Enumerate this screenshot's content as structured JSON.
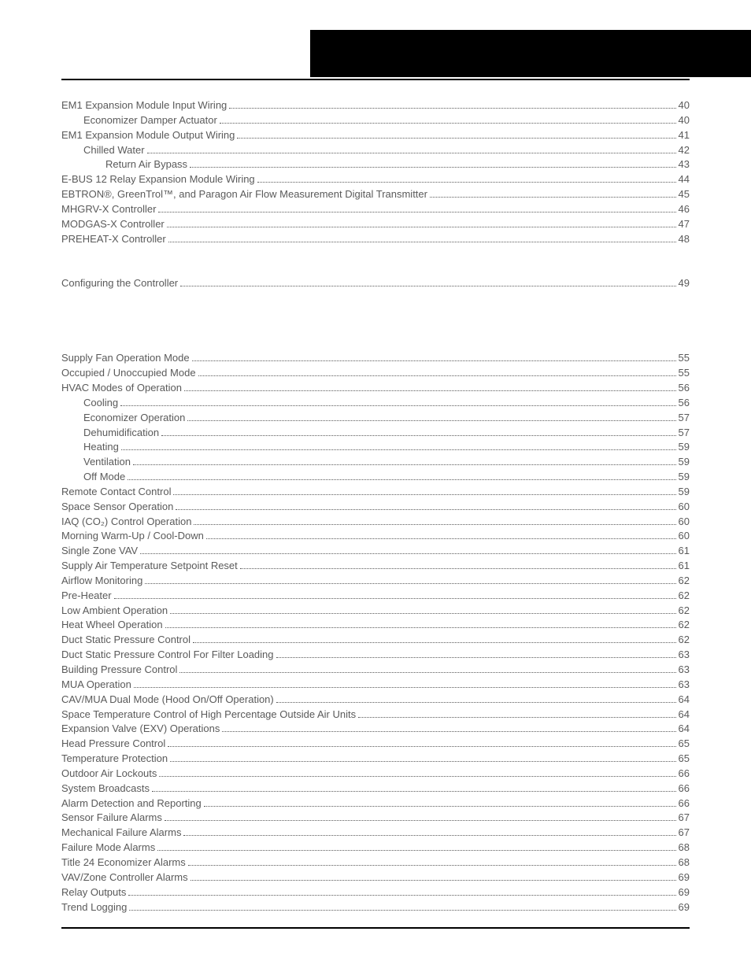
{
  "colors": {
    "text": "#5a5a5a",
    "divider": "#000000",
    "header_bar": "#000000",
    "background": "#ffffff"
  },
  "typography": {
    "font_family": "Arial, Helvetica, sans-serif",
    "font_size_pt": 10
  },
  "sections": [
    {
      "entries": [
        {
          "title": "EM1 Expansion Module Input Wiring",
          "page": "40",
          "indent": 0
        },
        {
          "title": "Economizer Damper Actuator",
          "page": "40",
          "indent": 1
        },
        {
          "title": "EM1 Expansion Module Output Wiring",
          "page": "41",
          "indent": 0
        },
        {
          "title": "Chilled Water",
          "page": "42",
          "indent": 1
        },
        {
          "title": "Return Air Bypass",
          "page": "43",
          "indent": 2
        },
        {
          "title": "E-BUS 12 Relay Expansion Module Wiring",
          "page": "44",
          "indent": 0
        },
        {
          "title": "EBTRON®, GreenTrol™, and Paragon Air Flow Measurement Digital Transmitter",
          "page": "45",
          "indent": 0
        },
        {
          "title": "MHGRV-X Controller",
          "page": "46",
          "indent": 0
        },
        {
          "title": "MODGAS-X Controller",
          "page": "47",
          "indent": 0
        },
        {
          "title": "PREHEAT-X Controller",
          "page": "48",
          "indent": 0
        }
      ]
    },
    {
      "entries": [
        {
          "title": "Configuring the Controller",
          "page": "49",
          "indent": 0
        }
      ]
    },
    {
      "entries": [
        {
          "title": "Supply Fan Operation Mode",
          "page": "55",
          "indent": 0
        },
        {
          "title": "Occupied / Unoccupied Mode",
          "page": "55",
          "indent": 0
        },
        {
          "title": "HVAC Modes of Operation",
          "page": "56",
          "indent": 0
        },
        {
          "title": "Cooling",
          "page": "56",
          "indent": 1
        },
        {
          "title": "Economizer Operation",
          "page": "57",
          "indent": 1
        },
        {
          "title": "Dehumidification",
          "page": "57",
          "indent": 1
        },
        {
          "title": "Heating",
          "page": "59",
          "indent": 1
        },
        {
          "title": "Ventilation",
          "page": "59",
          "indent": 1
        },
        {
          "title": "Off Mode",
          "page": "59",
          "indent": 1
        },
        {
          "title": "Remote Contact Control",
          "page": "59",
          "indent": 0
        },
        {
          "title": "Space Sensor Operation",
          "page": "60",
          "indent": 0
        },
        {
          "title": "IAQ (CO₂) Control Operation",
          "page": "60",
          "indent": 0
        },
        {
          "title": "Morning Warm-Up / Cool-Down",
          "page": "60",
          "indent": 0
        },
        {
          "title": "Single Zone VAV",
          "page": "61",
          "indent": 0
        },
        {
          "title": "Supply Air Temperature Setpoint Reset",
          "page": "61",
          "indent": 0
        },
        {
          "title": "Airflow Monitoring",
          "page": "62",
          "indent": 0
        },
        {
          "title": "Pre-Heater",
          "page": "62",
          "indent": 0
        },
        {
          "title": "Low Ambient Operation",
          "page": "62",
          "indent": 0
        },
        {
          "title": "Heat Wheel Operation",
          "page": "62",
          "indent": 0
        },
        {
          "title": "Duct Static Pressure Control",
          "page": "62",
          "indent": 0
        },
        {
          "title": "Duct Static Pressure Control For Filter Loading",
          "page": "63",
          "indent": 0
        },
        {
          "title": "Building Pressure Control",
          "page": "63",
          "indent": 0
        },
        {
          "title": "MUA Operation",
          "page": "63",
          "indent": 0
        },
        {
          "title": "CAV/MUA Dual Mode (Hood On/Off Operation)",
          "page": "64",
          "indent": 0
        },
        {
          "title": "Space Temperature Control of High Percentage Outside Air Units",
          "page": "64",
          "indent": 0
        },
        {
          "title": "Expansion Valve (EXV) Operations",
          "page": "64",
          "indent": 0
        },
        {
          "title": "Head Pressure Control",
          "page": "65",
          "indent": 0
        },
        {
          "title": "Temperature Protection",
          "page": "65",
          "indent": 0
        },
        {
          "title": "Outdoor Air Lockouts",
          "page": "66",
          "indent": 0
        },
        {
          "title": "System Broadcasts",
          "page": "66",
          "indent": 0
        },
        {
          "title": "Alarm Detection and Reporting",
          "page": "66",
          "indent": 0
        },
        {
          "title": "Sensor Failure Alarms",
          "page": "67",
          "indent": 0
        },
        {
          "title": "Mechanical Failure Alarms",
          "page": "67",
          "indent": 0
        },
        {
          "title": "Failure Mode Alarms",
          "page": "68",
          "indent": 0
        },
        {
          "title": "Title 24 Economizer Alarms",
          "page": "68",
          "indent": 0
        },
        {
          "title": "VAV/Zone Controller Alarms",
          "page": "69",
          "indent": 0
        },
        {
          "title": "Relay Outputs",
          "page": "69",
          "indent": 0
        },
        {
          "title": "Trend Logging",
          "page": "69",
          "indent": 0
        }
      ]
    }
  ]
}
